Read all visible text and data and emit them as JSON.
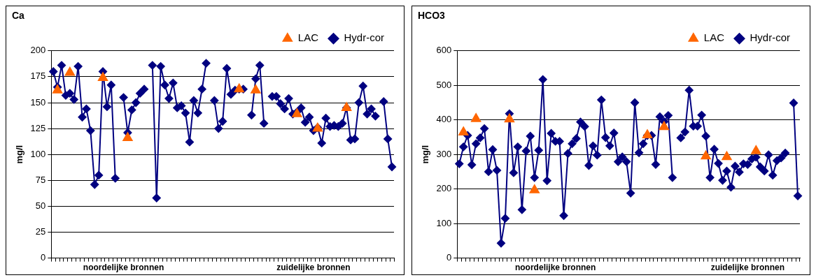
{
  "chart_data": [
    {
      "type": "line",
      "title": "Ca",
      "ylabel": "mg/l",
      "ylim": [
        0,
        200
      ],
      "yticks": [
        0,
        25,
        50,
        75,
        100,
        125,
        150,
        175,
        200
      ],
      "grid": "y",
      "legend": "top right",
      "categories": [
        null,
        null,
        null,
        null,
        null,
        null,
        null,
        null,
        null,
        null,
        null,
        null,
        null,
        null,
        null,
        null,
        null,
        "noordelijke bronnen",
        null,
        null,
        null,
        null,
        null,
        null,
        null,
        null,
        null,
        null,
        null,
        null,
        null,
        null,
        null,
        null,
        null,
        null,
        null,
        null,
        null,
        null,
        null,
        null,
        null,
        null,
        null,
        null,
        null,
        null,
        null,
        null,
        null,
        null,
        null,
        null,
        null,
        null,
        null,
        null,
        null,
        null,
        null,
        null,
        null,
        "zuidelijke bronnen",
        null,
        null,
        null,
        null,
        null,
        null,
        null,
        null,
        null,
        null,
        null,
        null,
        null,
        null,
        null,
        null,
        null,
        null,
        null
      ],
      "series": [
        {
          "name": "Hydr-cor",
          "color": "#000080",
          "marker": "diamond",
          "values": [
            180,
            165,
            186,
            157,
            159,
            153,
            185,
            136,
            144,
            123,
            71,
            80,
            180,
            146,
            167,
            77,
            null,
            155,
            121,
            143,
            150,
            159,
            163,
            null,
            186,
            58,
            185,
            167,
            154,
            169,
            145,
            147,
            140,
            112,
            152,
            140,
            163,
            188,
            null,
            152,
            125,
            132,
            183,
            158,
            162,
            163,
            163,
            null,
            138,
            173,
            186,
            130,
            null,
            156,
            156,
            149,
            144,
            154,
            139,
            141,
            145,
            131,
            136,
            123,
            126,
            111,
            135,
            127,
            128,
            127,
            130,
            145,
            114,
            115,
            150,
            166,
            139,
            144,
            137,
            null,
            151,
            115,
            88
          ]
        },
        {
          "name": "LAC",
          "type": "scatter",
          "color": "#ff6600",
          "marker": "triangle",
          "values": [
            null,
            162,
            null,
            null,
            179,
            null,
            null,
            null,
            null,
            null,
            null,
            null,
            174,
            null,
            null,
            null,
            null,
            null,
            116,
            null,
            null,
            null,
            null,
            null,
            null,
            null,
            null,
            null,
            null,
            null,
            null,
            null,
            null,
            null,
            null,
            null,
            null,
            null,
            null,
            null,
            null,
            null,
            null,
            null,
            null,
            163,
            null,
            null,
            null,
            162,
            null,
            null,
            null,
            null,
            null,
            null,
            null,
            null,
            null,
            139,
            null,
            null,
            null,
            null,
            125,
            null,
            null,
            null,
            null,
            null,
            null,
            145,
            null,
            null,
            null,
            null,
            null,
            null,
            null,
            null,
            null,
            null,
            null
          ]
        }
      ]
    },
    {
      "type": "line",
      "title": "HCO3",
      "ylabel": "mg/l",
      "ylim": [
        0,
        600
      ],
      "yticks": [
        0,
        100,
        200,
        300,
        400,
        500,
        600
      ],
      "grid": "y",
      "legend": "top right",
      "categories": [
        null,
        null,
        null,
        null,
        null,
        null,
        null,
        null,
        null,
        null,
        null,
        null,
        null,
        null,
        null,
        null,
        null,
        null,
        null,
        null,
        null,
        null,
        null,
        "noordelijke bronnen",
        null,
        null,
        null,
        null,
        null,
        null,
        null,
        null,
        null,
        null,
        null,
        null,
        null,
        null,
        null,
        null,
        null,
        null,
        null,
        null,
        null,
        null,
        null,
        null,
        null,
        null,
        null,
        null,
        null,
        null,
        null,
        null,
        null,
        null,
        null,
        null,
        null,
        null,
        null,
        null,
        null,
        null,
        null,
        null,
        null,
        "zuidelijke bronnen",
        null,
        null,
        null,
        null,
        null,
        null,
        null,
        null,
        null,
        null,
        null,
        null
      ],
      "series": [
        {
          "name": "Hydr-cor",
          "color": "#000080",
          "marker": "diamond",
          "values": [
            273,
            322,
            355,
            270,
            331,
            348,
            375,
            250,
            314,
            254,
            43,
            115,
            418,
            247,
            322,
            140,
            310,
            353,
            233,
            312,
            517,
            224,
            361,
            338,
            338,
            123,
            303,
            331,
            346,
            394,
            381,
            268,
            325,
            298,
            458,
            349,
            325,
            362,
            279,
            293,
            279,
            188,
            450,
            305,
            331,
            355,
            355,
            271,
            409,
            395,
            413,
            233,
            null,
            348,
            365,
            486,
            382,
            382,
            414,
            353,
            233,
            315,
            274,
            225,
            252,
            205,
            266,
            249,
            273,
            271,
            287,
            292,
            264,
            252,
            299,
            240,
            282,
            290,
            304,
            null,
            449,
            180
          ]
        },
        {
          "name": "LAC",
          "type": "scatter",
          "color": "#ff6600",
          "marker": "triangle",
          "values": [
            null,
            364,
            null,
            null,
            403,
            null,
            null,
            null,
            null,
            null,
            null,
            null,
            402,
            null,
            null,
            null,
            null,
            null,
            197,
            null,
            null,
            null,
            null,
            null,
            null,
            null,
            null,
            null,
            null,
            null,
            null,
            null,
            null,
            null,
            null,
            null,
            null,
            null,
            null,
            null,
            null,
            null,
            null,
            null,
            null,
            356,
            null,
            null,
            null,
            380,
            null,
            null,
            null,
            null,
            null,
            null,
            null,
            null,
            null,
            295,
            null,
            null,
            null,
            null,
            293,
            null,
            null,
            null,
            null,
            null,
            null,
            310,
            null,
            null,
            null,
            null,
            null,
            null,
            null,
            null,
            null,
            null
          ]
        }
      ]
    }
  ]
}
